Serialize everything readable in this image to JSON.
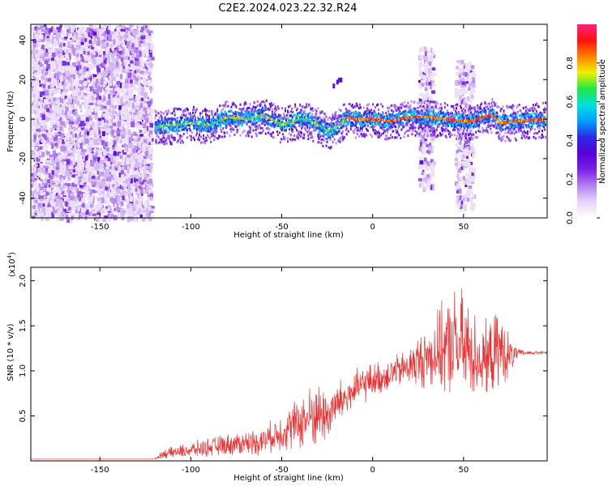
{
  "figure_title": "C2E2.2024.023.22.32.R24",
  "chart_data": [
    {
      "type": "heatmap",
      "xlabel": "Height of straight line (km)",
      "ylabel": "Frequency (Hz)",
      "xlim": [
        -188,
        96
      ],
      "ylim": [
        -50,
        48
      ],
      "x_ticks": [
        -150,
        -100,
        -50,
        0,
        50
      ],
      "y_ticks": [
        -40,
        -20,
        0,
        20,
        40
      ],
      "x_tick_labels": [
        "-150",
        "-100",
        "-50",
        "0",
        "50"
      ],
      "y_tick_labels": [
        "-40",
        "-20",
        "0",
        "20",
        "40"
      ],
      "colorbar": {
        "label": "Normalized spectral amplitude",
        "range": [
          0,
          1
        ],
        "ticks": [
          0.0,
          0.2,
          0.4,
          0.6,
          0.8
        ],
        "tick_labels": [
          "0.0",
          "0.2",
          "0.4",
          "0.6",
          "0.8"
        ],
        "colors": [
          "#ffffff",
          "#e6d5fa",
          "#b57ef0",
          "#7a1ee6",
          "#5a00d8",
          "#2a2ae8",
          "#00a0ff",
          "#00e0e0",
          "#20e840",
          "#f0f000",
          "#ff8000",
          "#ff1010",
          "#ff2080"
        ]
      },
      "ridge_x": [
        -120,
        -110,
        -100,
        -90,
        -80,
        -70,
        -60,
        -50,
        -40,
        -35,
        -30,
        -25,
        -20,
        -15,
        -10,
        0,
        10,
        20,
        30,
        40,
        50,
        55,
        60,
        65,
        70,
        80,
        95
      ],
      "ridge_y": [
        -4,
        -3,
        -2,
        -3,
        1,
        0,
        2,
        -3,
        0,
        -1,
        -3,
        -6,
        -4,
        1,
        0,
        0,
        -1,
        1,
        1,
        0,
        -1,
        -1,
        1,
        2,
        -2,
        -1,
        0
      ],
      "noise_regions": [
        {
          "x": [
            -188,
            -122
          ],
          "y": [
            -50,
            48
          ]
        },
        {
          "x": [
            25,
            33
          ],
          "y": [
            -35,
            38
          ]
        },
        {
          "x": [
            45,
            55
          ],
          "y": [
            -45,
            30
          ]
        }
      ]
    },
    {
      "type": "line",
      "xlabel": "Height of straight line (km)",
      "ylabel": "SNR (10 * v/v)",
      "y_multiplier_label": "(x10",
      "y_multiplier_exp": "4",
      "xlim": [
        -188,
        96
      ],
      "ylim": [
        0,
        2.15
      ],
      "x_ticks": [
        -150,
        -100,
        -50,
        0,
        50
      ],
      "y_ticks": [
        0.5,
        1.0,
        1.5,
        2.0
      ],
      "x_tick_labels": [
        "-150",
        "-100",
        "-50",
        "0",
        "50"
      ],
      "y_tick_labels": [
        "0.5",
        "1.0",
        "1.5",
        "2.0"
      ],
      "color": "#ee3333",
      "envelope_x": [
        -188,
        -120,
        -115,
        -100,
        -90,
        -80,
        -70,
        -60,
        -55,
        -50,
        -45,
        -40,
        -35,
        -30,
        -25,
        -20,
        -15,
        -10,
        -5,
        0,
        5,
        10,
        15,
        20,
        25,
        30,
        35,
        40,
        45,
        50,
        55,
        60,
        65,
        70,
        75,
        80,
        85,
        90,
        96
      ],
      "envelope_y": [
        0.02,
        0.02,
        0.08,
        0.12,
        0.15,
        0.18,
        0.2,
        0.22,
        0.28,
        0.32,
        0.38,
        0.42,
        0.48,
        0.52,
        0.5,
        0.62,
        0.7,
        0.78,
        0.85,
        0.9,
        0.92,
        0.98,
        1.0,
        1.05,
        1.1,
        1.15,
        1.2,
        1.25,
        1.3,
        1.25,
        1.2,
        1.1,
        1.15,
        1.25,
        1.15,
        1.2,
        1.2,
        1.2,
        1.2
      ],
      "envelope_amp": [
        0.0,
        0.0,
        0.06,
        0.1,
        0.12,
        0.14,
        0.16,
        0.18,
        0.2,
        0.25,
        0.3,
        0.35,
        0.4,
        0.42,
        0.35,
        0.3,
        0.28,
        0.25,
        0.25,
        0.22,
        0.22,
        0.22,
        0.22,
        0.25,
        0.35,
        0.4,
        0.5,
        0.6,
        0.7,
        0.75,
        0.6,
        0.45,
        0.5,
        0.5,
        0.3,
        0.05,
        0.03,
        0.02,
        0.02
      ]
    }
  ]
}
